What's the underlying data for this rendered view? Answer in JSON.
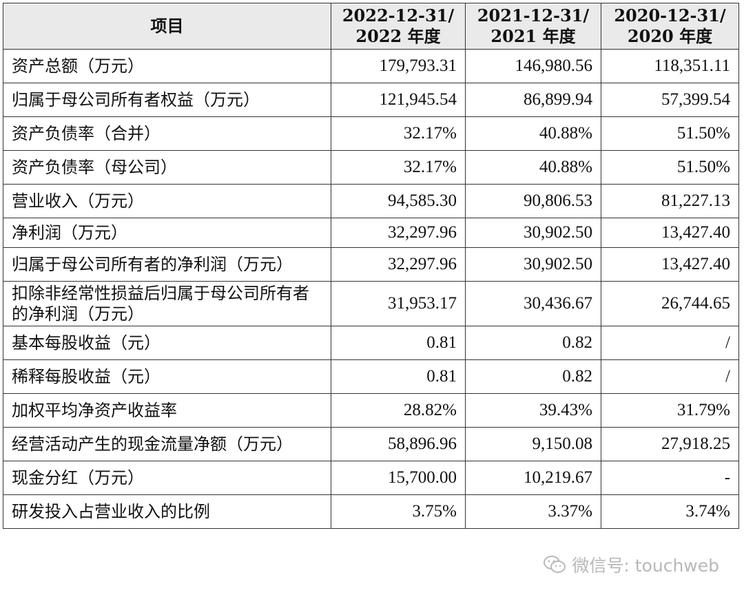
{
  "table": {
    "headers": [
      {
        "line1": "项目",
        "line2": ""
      },
      {
        "line1": "2022-12-31/",
        "line2": "2022 年度"
      },
      {
        "line1": "2021-12-31/",
        "line2": "2021 年度"
      },
      {
        "line1": "2020-12-31/",
        "line2": "2020 年度"
      }
    ],
    "rows": [
      {
        "label": "资产总额（万元）",
        "v2022": "179,793.31",
        "v2021": "146,980.56",
        "v2020": "118,351.11"
      },
      {
        "label": "归属于母公司所有者权益（万元）",
        "v2022": "121,945.54",
        "v2021": "86,899.94",
        "v2020": "57,399.54"
      },
      {
        "label": "资产负债率（合并）",
        "v2022": "32.17%",
        "v2021": "40.88%",
        "v2020": "51.50%"
      },
      {
        "label": "资产负债率（母公司）",
        "v2022": "32.17%",
        "v2021": "40.88%",
        "v2020": "51.50%"
      },
      {
        "label": "营业收入（万元）",
        "v2022": "94,585.30",
        "v2021": "90,806.53",
        "v2020": "81,227.13"
      },
      {
        "label": "净利润（万元）",
        "v2022": "32,297.96",
        "v2021": "30,902.50",
        "v2020": "13,427.40"
      },
      {
        "label": "归属于母公司所有者的净利润（万元）",
        "v2022": "32,297.96",
        "v2021": "30,902.50",
        "v2020": "13,427.40"
      },
      {
        "label": "扣除非经常性损益后归属于母公司所有者的净利润（万元）",
        "v2022": "31,953.17",
        "v2021": "30,436.67",
        "v2020": "26,744.65"
      },
      {
        "label": "基本每股收益（元）",
        "v2022": "0.81",
        "v2021": "0.82",
        "v2020": "/"
      },
      {
        "label": "稀释每股收益（元）",
        "v2022": "0.81",
        "v2021": "0.82",
        "v2020": "/"
      },
      {
        "label": "加权平均净资产收益率",
        "v2022": "28.82%",
        "v2021": "39.43%",
        "v2020": "31.79%"
      },
      {
        "label": "经营活动产生的现金流量净额（万元）",
        "v2022": "58,896.96",
        "v2021": "9,150.08",
        "v2020": "27,918.25"
      },
      {
        "label": "现金分红（万元）",
        "v2022": "15,700.00",
        "v2021": "10,219.67",
        "v2020": "-"
      },
      {
        "label": "研发投入占营业收入的比例",
        "v2022": "3.75%",
        "v2021": "3.37%",
        "v2020": "3.74%"
      }
    ]
  },
  "watermark": {
    "text": "微信号: touchweb",
    "icon": "wechat-icon"
  }
}
